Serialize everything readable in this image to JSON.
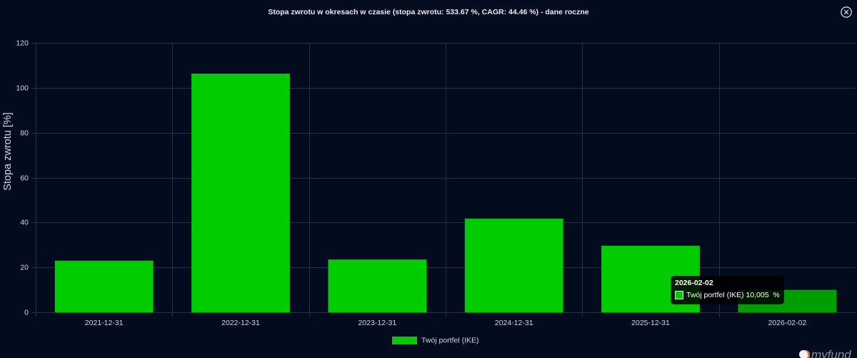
{
  "colors": {
    "background": "#030c1e",
    "bar": "#00cc00",
    "bar_hover": "#019e01",
    "grid": "#263040",
    "text": "#d2d6de"
  },
  "icons": {
    "close": "close-icon"
  },
  "chart_data": {
    "type": "bar",
    "title": "Stopa zwrotu w okresach w czasie (stopa zwrotu: 533.67 %, CAGR: 44.46 %) - dane roczne",
    "categories": [
      "2021-12-31",
      "2022-12-31",
      "2023-12-31",
      "2024-12-31",
      "2025-12-31",
      "2026-02-02"
    ],
    "series": [
      {
        "name": "Twój portfel (IKE)",
        "values": [
          23.0,
          106.3,
          23.5,
          41.7,
          29.6,
          10.005
        ]
      }
    ],
    "xlabel": "",
    "ylabel": "Stopa zwrotu [%]",
    "ylim": [
      0,
      120
    ],
    "yticks": [
      0,
      20,
      40,
      60,
      80,
      100,
      120
    ],
    "grid": true,
    "legend": "bottom-center"
  },
  "tooltip": {
    "title": "2026-02-02",
    "label": "Twój portfel (IKE) 10,005  %"
  },
  "logo": {
    "text": "myfund"
  }
}
